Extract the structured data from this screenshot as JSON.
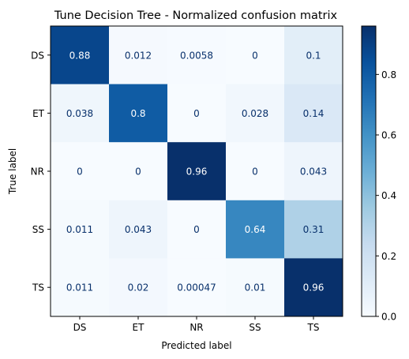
{
  "chart_data": {
    "type": "heatmap",
    "title": "Tune Decision Tree - Normalized confusion matrix",
    "xlabel": "Predicted label",
    "ylabel": "True label",
    "x_categories": [
      "DS",
      "ET",
      "NR",
      "SS",
      "TS"
    ],
    "y_categories": [
      "DS",
      "ET",
      "NR",
      "SS",
      "TS"
    ],
    "values": [
      [
        0.88,
        0.012,
        0.0058,
        0,
        0.1
      ],
      [
        0.038,
        0.8,
        0,
        0.028,
        0.14
      ],
      [
        0,
        0,
        0.96,
        0,
        0.043
      ],
      [
        0.011,
        0.043,
        0,
        0.64,
        0.31
      ],
      [
        0.011,
        0.02,
        0.00047,
        0.01,
        0.96
      ]
    ],
    "cell_labels": [
      [
        "0.88",
        "0.012",
        "0.0058",
        "0",
        "0.1"
      ],
      [
        "0.038",
        "0.8",
        "0",
        "0.028",
        "0.14"
      ],
      [
        "0",
        "0",
        "0.96",
        "0",
        "0.043"
      ],
      [
        "0.011",
        "0.043",
        "0",
        "0.64",
        "0.31"
      ],
      [
        "0.011",
        "0.02",
        "0.00047",
        "0.01",
        "0.96"
      ]
    ],
    "colormap": "Blues",
    "colorbar": {
      "range": [
        0,
        0.96
      ],
      "ticks": [
        0.0,
        0.2,
        0.4,
        0.6,
        0.8
      ],
      "tick_labels": [
        "0.0",
        "0.2",
        "0.4",
        "0.6",
        "0.8"
      ]
    },
    "text_color_light": "#ffffff",
    "text_color_dark": "#08306b",
    "grid": false
  }
}
